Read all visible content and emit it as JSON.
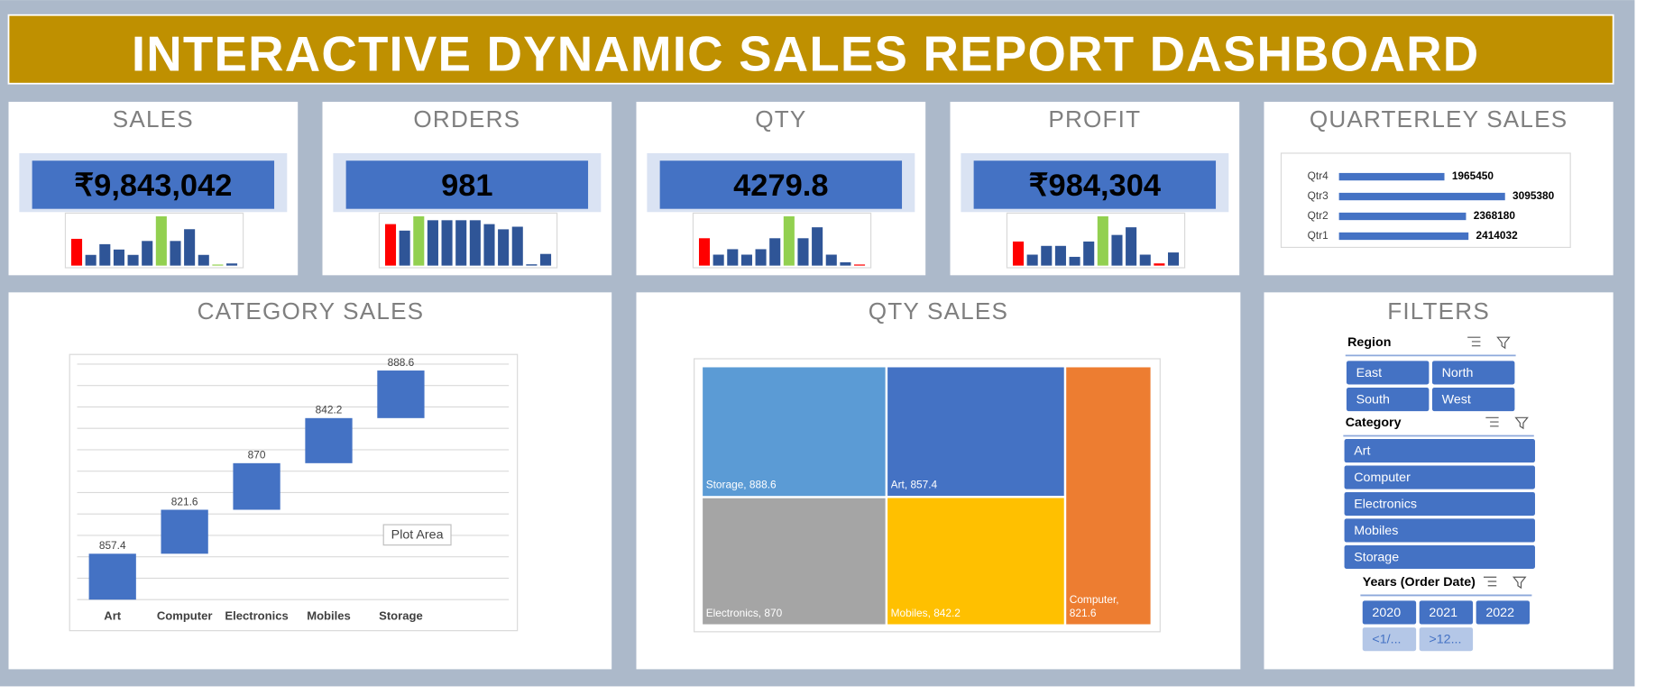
{
  "header": {
    "title": "INTERACTIVE DYNAMIC SALES REPORT DASHBOARD"
  },
  "kpis": [
    {
      "title": "SALES",
      "value": "₹9,843,042",
      "sparkline": [
        25,
        10,
        20,
        15,
        10,
        23,
        46,
        23,
        34,
        10,
        1,
        2
      ],
      "colors": [
        "#ff0000",
        "#2f5597",
        "#2f5597",
        "#2f5597",
        "#2f5597",
        "#2f5597",
        "#92d050",
        "#2f5597",
        "#2f5597",
        "#2f5597",
        "#92d050",
        "#2f5597"
      ]
    },
    {
      "title": "ORDERS",
      "value": "981",
      "sparkline": [
        32,
        27,
        38,
        35,
        35,
        35,
        35,
        32,
        28,
        30,
        1,
        9
      ],
      "colors": [
        "#ff0000",
        "#2f5597",
        "#92d050",
        "#2f5597",
        "#2f5597",
        "#2f5597",
        "#2f5597",
        "#2f5597",
        "#2f5597",
        "#2f5597",
        "#2f5597",
        "#2f5597"
      ]
    },
    {
      "title": "QTY",
      "value": "4279.8",
      "sparkline": [
        25,
        10,
        15,
        10,
        15,
        25,
        45,
        25,
        35,
        10,
        3,
        1
      ],
      "colors": [
        "#ff0000",
        "#2f5597",
        "#2f5597",
        "#2f5597",
        "#2f5597",
        "#2f5597",
        "#92d050",
        "#2f5597",
        "#2f5597",
        "#2f5597",
        "#2f5597",
        "#ff0000"
      ]
    },
    {
      "title": "PROFIT",
      "value": "₹984,304",
      "sparkline": [
        22,
        10,
        18,
        18,
        8,
        22,
        45,
        28,
        35,
        10,
        2,
        12
      ],
      "colors": [
        "#ff0000",
        "#2f5597",
        "#2f5597",
        "#2f5597",
        "#2f5597",
        "#2f5597",
        "#92d050",
        "#2f5597",
        "#2f5597",
        "#2f5597",
        "#ff0000",
        "#2f5597"
      ]
    }
  ],
  "chart_data": [
    {
      "type": "hbar",
      "title": "QUARTERLEY SALES",
      "categories": [
        "Qtr4",
        "Qtr3",
        "Qtr2",
        "Qtr1"
      ],
      "values": [
        1965450,
        3095380,
        2368180,
        2414032
      ],
      "color": "#4472c4"
    },
    {
      "type": "waterfall",
      "title": "CATEGORY SALES",
      "categories": [
        "Art",
        "Computer",
        "Electronics",
        "Mobiles",
        "Storage"
      ],
      "values": [
        857.4,
        821.6,
        870,
        842.2,
        888.6
      ],
      "color": "#4472c4",
      "ylim": [
        0,
        4400
      ],
      "yticks": [
        0,
        400,
        800,
        1200,
        1600,
        2000,
        2400,
        2800,
        3200,
        3600,
        4000,
        4400
      ],
      "grid": true,
      "tooltip": "Plot Area"
    },
    {
      "type": "treemap",
      "title": "QTY SALES",
      "categories": [
        "Storage",
        "Electronics",
        "Art",
        "Mobiles",
        "Computer"
      ],
      "values": [
        888.6,
        870,
        857.4,
        842.2,
        821.6
      ],
      "value_labels": [
        "Storage, 888.6",
        "Electronics, 870",
        "Art, 857.4",
        "Mobiles, 842.2",
        "Computer, 821.6"
      ],
      "colors": [
        "#5b9bd5",
        "#a5a5a5",
        "#4472c4",
        "#ffc000",
        "#ed7d31"
      ]
    }
  ],
  "filters": {
    "title": "FILTERS",
    "region": {
      "label": "Region",
      "items": [
        "East",
        "North",
        "South",
        "West"
      ]
    },
    "category": {
      "label": "Category",
      "items": [
        "Art",
        "Computer",
        "Electronics",
        "Mobiles",
        "Storage"
      ]
    },
    "years": {
      "label": "Years (Order Date)",
      "items": [
        "2020",
        "2021",
        "2022"
      ],
      "more": [
        "<1/...",
        ">12..."
      ]
    }
  }
}
